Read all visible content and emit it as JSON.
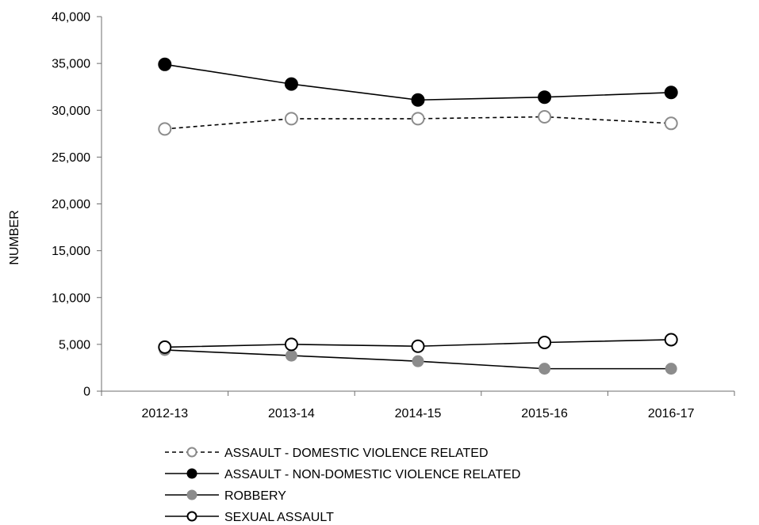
{
  "chart_data": {
    "type": "line",
    "title": "",
    "xlabel": "",
    "ylabel": "NUMBER",
    "categories": [
      "2012-13",
      "2013-14",
      "2014-15",
      "2015-16",
      "2016-17"
    ],
    "ylim": [
      0,
      40000
    ],
    "yticks": [
      0,
      5000,
      10000,
      15000,
      20000,
      25000,
      30000,
      35000,
      40000
    ],
    "ytick_labels": [
      "0",
      "5,000",
      "10,000",
      "15,000",
      "20,000",
      "25,000",
      "30,000",
      "35,000",
      "40,000"
    ],
    "grid": false,
    "legend_position": "bottom",
    "series": [
      {
        "name": "ASSAULT - DOMESTIC VIOLENCE RELATED",
        "values": [
          28000,
          29100,
          29100,
          29300,
          28600
        ],
        "line_style": "dashed",
        "marker": "open-gray",
        "color": "#000000"
      },
      {
        "name": "ASSAULT - NON-DOMESTIC VIOLENCE RELATED",
        "values": [
          34900,
          32800,
          31100,
          31400,
          31900
        ],
        "line_style": "solid",
        "marker": "filled-black",
        "color": "#000000"
      },
      {
        "name": "ROBBERY",
        "values": [
          4400,
          3800,
          3200,
          2400,
          2400
        ],
        "line_style": "solid",
        "marker": "filled-gray",
        "color": "#808080"
      },
      {
        "name": "SEXUAL ASSAULT",
        "values": [
          4700,
          5000,
          4800,
          5200,
          5500
        ],
        "line_style": "solid",
        "marker": "open-black",
        "color": "#000000"
      }
    ]
  }
}
